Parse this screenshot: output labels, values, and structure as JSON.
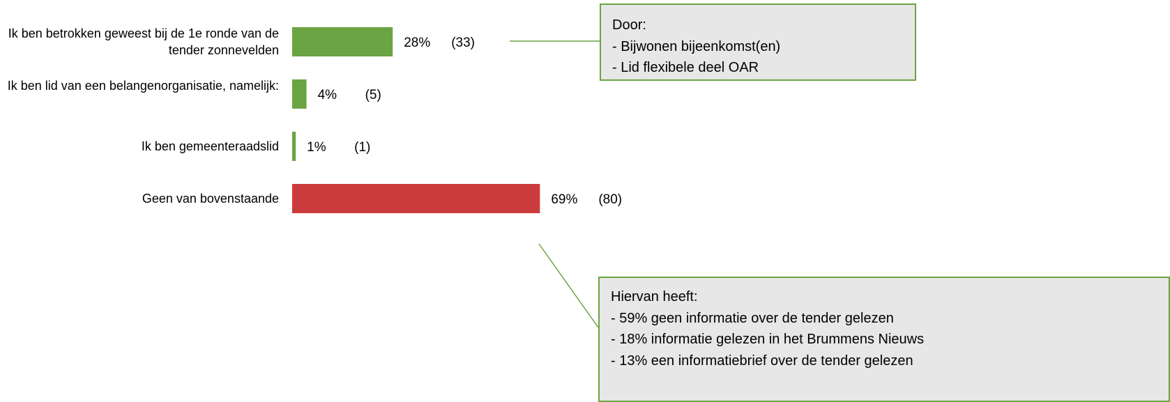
{
  "chart_data": {
    "type": "bar",
    "orientation": "horizontal",
    "categories": [
      "Ik ben betrokken geweest bij de 1e ronde van de tender zonnevelden",
      "Ik ben lid van een belangenorganisatie, namelijk:",
      "Ik ben gemeenteraadslid",
      "Geen van bovenstaande"
    ],
    "values": [
      28,
      4,
      1,
      69
    ],
    "value_labels": [
      "28%",
      "4%",
      "1%",
      "69%"
    ],
    "counts": [
      33,
      5,
      1,
      80
    ],
    "count_labels": [
      "(33)",
      "(5)",
      "(1)",
      "(80)"
    ],
    "colors": [
      "#6aa443",
      "#6aa443",
      "#6aa443",
      "#cc3b3b"
    ],
    "annotations": [
      {
        "lines": [
          "Door:",
          "- Bijwonen bijeenkomst(en)",
          "- Lid flexibele deel OAR"
        ]
      },
      {
        "lines": [
          "Hiervan heeft:",
          "- 59% geen informatie over de tender gelezen",
          "- 18% informatie gelezen in het Brummens Nieuws",
          "- 13% een informatiebrief over de tender gelezen"
        ]
      }
    ]
  }
}
